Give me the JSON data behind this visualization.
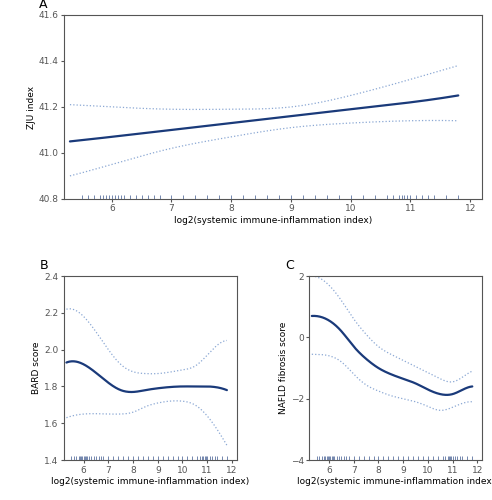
{
  "panel_A": {
    "label": "A",
    "x_range": [
      5.2,
      12.2
    ],
    "x_ticks": [
      6,
      7,
      8,
      9,
      10,
      11,
      12
    ],
    "xlabel": "log2(systemic immune-inflammation index)",
    "ylabel": "ZJU index",
    "y_range": [
      40.8,
      41.6
    ],
    "y_ticks": [
      40.8,
      41.0,
      41.2,
      41.4,
      41.6
    ],
    "main_x": [
      5.3,
      6.0,
      7.0,
      8.0,
      9.0,
      10.0,
      11.0,
      11.8
    ],
    "main_y": [
      41.05,
      41.07,
      41.1,
      41.13,
      41.16,
      41.19,
      41.22,
      41.25
    ],
    "ci_upper_x": [
      5.3,
      6.0,
      7.0,
      8.0,
      9.0,
      10.0,
      11.0,
      11.8
    ],
    "ci_upper_y": [
      41.21,
      41.2,
      41.19,
      41.19,
      41.2,
      41.25,
      41.32,
      41.38
    ],
    "ci_lower_x": [
      5.3,
      6.0,
      7.0,
      8.0,
      9.0,
      10.0,
      11.0,
      11.8
    ],
    "ci_lower_y": [
      40.9,
      40.95,
      41.02,
      41.07,
      41.11,
      41.13,
      41.14,
      41.14
    ],
    "rug_x": [
      5.5,
      5.6,
      5.7,
      5.8,
      5.85,
      5.9,
      5.95,
      6.0,
      6.05,
      6.1,
      6.15,
      6.2,
      6.3,
      6.4,
      6.5,
      6.6,
      6.7,
      6.8,
      7.0,
      7.2,
      7.4,
      7.6,
      7.8,
      8.0,
      8.2,
      8.4,
      8.6,
      8.8,
      9.0,
      9.2,
      9.4,
      9.6,
      9.8,
      10.0,
      10.2,
      10.4,
      10.6,
      10.7,
      10.8,
      10.85,
      10.9,
      10.95,
      11.0,
      11.1,
      11.2,
      11.3,
      11.4,
      11.6,
      11.8
    ],
    "line_color": "#1a3a7a",
    "ci_color": "#8ba8d4",
    "rug_color": "#1a3a7a"
  },
  "panel_B": {
    "label": "B",
    "x_range": [
      5.2,
      12.2
    ],
    "x_ticks": [
      6,
      7,
      8,
      9,
      10,
      11,
      12
    ],
    "xlabel": "log2(systemic immune-inflammation index)",
    "ylabel": "BARD score",
    "y_range": [
      1.4,
      2.4
    ],
    "y_ticks": [
      1.4,
      1.6,
      1.8,
      2.0,
      2.2,
      2.4
    ],
    "main_x": [
      5.3,
      6.0,
      7.0,
      7.5,
      8.0,
      8.5,
      9.0,
      10.0,
      10.5,
      11.0,
      11.8
    ],
    "main_y": [
      1.93,
      1.92,
      1.82,
      1.78,
      1.77,
      1.78,
      1.79,
      1.8,
      1.8,
      1.8,
      1.78
    ],
    "ci_upper_x": [
      5.3,
      6.0,
      7.0,
      7.5,
      8.0,
      8.5,
      9.0,
      10.0,
      10.5,
      11.0,
      11.8
    ],
    "ci_upper_y": [
      2.22,
      2.18,
      2.0,
      1.92,
      1.88,
      1.87,
      1.87,
      1.89,
      1.91,
      1.97,
      2.05
    ],
    "ci_lower_x": [
      5.3,
      6.0,
      7.0,
      7.5,
      8.0,
      8.5,
      9.0,
      10.0,
      10.5,
      11.0,
      11.8
    ],
    "ci_lower_y": [
      1.63,
      1.65,
      1.65,
      1.65,
      1.66,
      1.69,
      1.71,
      1.72,
      1.7,
      1.64,
      1.48
    ],
    "rug_x": [
      5.5,
      5.6,
      5.7,
      5.8,
      5.85,
      5.9,
      5.95,
      6.0,
      6.05,
      6.1,
      6.15,
      6.2,
      6.3,
      6.4,
      6.5,
      6.6,
      6.7,
      6.8,
      7.0,
      7.2,
      7.4,
      7.6,
      7.8,
      8.0,
      8.2,
      8.4,
      8.6,
      8.8,
      9.0,
      9.2,
      9.4,
      9.6,
      9.8,
      10.0,
      10.2,
      10.4,
      10.6,
      10.7,
      10.8,
      10.85,
      10.9,
      10.95,
      11.0,
      11.1,
      11.2,
      11.3,
      11.4,
      11.6,
      11.8
    ],
    "line_color": "#1a3a7a",
    "ci_color": "#8ba8d4",
    "rug_color": "#1a3a7a"
  },
  "panel_C": {
    "label": "C",
    "x_range": [
      5.2,
      12.2
    ],
    "x_ticks": [
      6,
      7,
      8,
      9,
      10,
      11,
      12
    ],
    "xlabel": "log2(systemic immune-inflammation index)",
    "ylabel": "NAFLD fibrosis score",
    "y_range": [
      -4,
      2
    ],
    "y_ticks": [
      -4,
      -2,
      0,
      2
    ],
    "main_x": [
      5.3,
      6.0,
      6.5,
      7.0,
      7.5,
      8.0,
      8.5,
      9.0,
      9.5,
      10.0,
      10.5,
      11.0,
      11.3,
      11.8
    ],
    "main_y": [
      0.7,
      0.55,
      0.2,
      -0.3,
      -0.7,
      -1.0,
      -1.2,
      -1.35,
      -1.5,
      -1.7,
      -1.85,
      -1.85,
      -1.75,
      -1.6
    ],
    "ci_upper_x": [
      5.3,
      6.0,
      6.5,
      7.0,
      7.5,
      8.0,
      8.5,
      9.0,
      9.5,
      10.0,
      10.5,
      11.0,
      11.3,
      11.8
    ],
    "ci_upper_y": [
      2.0,
      1.7,
      1.2,
      0.6,
      0.1,
      -0.3,
      -0.55,
      -0.75,
      -0.95,
      -1.15,
      -1.35,
      -1.45,
      -1.35,
      -1.1
    ],
    "ci_lower_x": [
      5.3,
      6.0,
      6.5,
      7.0,
      7.5,
      8.0,
      8.5,
      9.0,
      9.5,
      10.0,
      10.5,
      11.0,
      11.3,
      11.8
    ],
    "ci_lower_y": [
      -0.55,
      -0.6,
      -0.8,
      -1.2,
      -1.55,
      -1.75,
      -1.9,
      -2.0,
      -2.1,
      -2.25,
      -2.38,
      -2.28,
      -2.18,
      -2.1
    ],
    "rug_x": [
      5.5,
      5.6,
      5.7,
      5.8,
      5.85,
      5.9,
      5.95,
      6.0,
      6.05,
      6.1,
      6.15,
      6.2,
      6.3,
      6.4,
      6.5,
      6.6,
      6.7,
      6.8,
      7.0,
      7.2,
      7.4,
      7.6,
      7.8,
      8.0,
      8.2,
      8.4,
      8.6,
      8.8,
      9.0,
      9.2,
      9.4,
      9.6,
      9.8,
      10.0,
      10.2,
      10.4,
      10.6,
      10.7,
      10.8,
      10.85,
      10.9,
      10.95,
      11.0,
      11.1,
      11.2,
      11.3,
      11.4,
      11.6,
      11.8
    ],
    "line_color": "#1a3a7a",
    "ci_color": "#8ba8d4",
    "rug_color": "#1a3a7a"
  },
  "bg_color": "#ffffff",
  "font_size": 6.5,
  "spine_color": "#555555"
}
